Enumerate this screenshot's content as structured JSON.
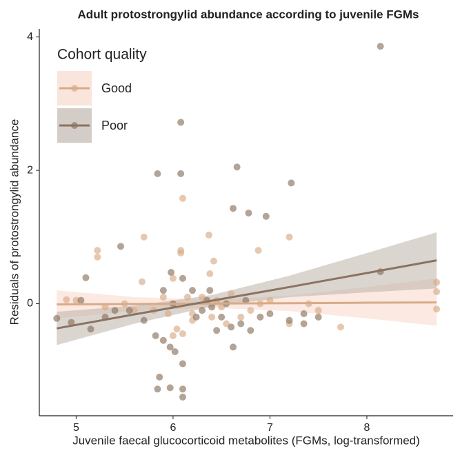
{
  "chart_data": {
    "type": "scatter",
    "title": "Adult protostrongylid abundance according to juvenile FGMs",
    "x_label": "Juvenile faecal glucocorticoid metabolites (FGMs, log-transformed)",
    "y_label": "Residuals of protostrongylid abundance",
    "legend_title": "Cohort quality",
    "legend": "top-left",
    "xlim": [
      4.62,
      8.89
    ],
    "ylim": [
      -1.68,
      4.12
    ],
    "xticks": [
      5,
      6,
      7,
      8
    ],
    "yticks": [
      0,
      2,
      4
    ],
    "series": [
      {
        "name": "Good",
        "color": "#d8ab86",
        "band_color": "#f7d3c6",
        "x": [
          6.1,
          6.37,
          5.7,
          7.2,
          6.88,
          5.22,
          5.22,
          6.08,
          6.08,
          6.42,
          6.0,
          6.38,
          5.68,
          8.72,
          8.72,
          8.72,
          7.73,
          6.04,
          6.1,
          6.0,
          6.4,
          5.0,
          4.9,
          5.3,
          5.5,
          5.8,
          5.9,
          6.2,
          6.3,
          6.5,
          6.6,
          6.8,
          7.0,
          7.2,
          7.5,
          6.7,
          6.2,
          5.6,
          6.9,
          7.4,
          6.45,
          6.55,
          6.15,
          5.95
        ],
        "y": [
          1.58,
          1.03,
          1.0,
          1.0,
          0.8,
          0.8,
          0.7,
          0.8,
          0.76,
          0.64,
          0.38,
          0.45,
          0.33,
          0.32,
          0.18,
          -0.08,
          -0.35,
          -0.38,
          -0.45,
          -0.48,
          -0.2,
          0.05,
          0.06,
          -0.05,
          0.0,
          -0.1,
          0.1,
          -0.15,
          0.1,
          -0.05,
          0.15,
          -0.1,
          0.05,
          -0.3,
          -0.1,
          -0.2,
          -0.25,
          -0.1,
          0.0,
          0.0,
          0.05,
          -0.3,
          0.1,
          -0.15
        ],
        "fit": {
          "x": [
            4.8,
            5.6,
            6.4,
            7.2,
            8.0,
            8.72
          ],
          "y": [
            -0.01,
            -0.004,
            0.002,
            0.008,
            0.015,
            0.02
          ],
          "lower": [
            -0.22,
            -0.11,
            -0.06,
            -0.11,
            -0.22,
            -0.33
          ],
          "upper": [
            0.2,
            0.1,
            0.06,
            0.12,
            0.25,
            0.38
          ]
        }
      },
      {
        "name": "Poor",
        "color": "#8a7360",
        "band_color": "#b8aca2",
        "x": [
          8.14,
          6.08,
          6.66,
          5.84,
          6.08,
          7.22,
          6.62,
          6.78,
          6.96,
          5.46,
          8.14,
          5.98,
          6.1,
          5.1,
          6.38,
          5.9,
          5.05,
          4.8,
          4.95,
          5.15,
          5.3,
          5.55,
          5.7,
          5.82,
          5.9,
          5.97,
          6.02,
          5.86,
          5.84,
          5.97,
          6.1,
          6.1,
          6.1,
          6.24,
          6.3,
          6.5,
          6.6,
          6.62,
          6.7,
          6.8,
          6.9,
          7.0,
          7.2,
          7.35,
          7.5,
          7.35,
          6.45,
          6.35,
          6.55,
          6.75,
          6.0,
          5.4,
          6.2,
          6.4
        ],
        "y": [
          3.86,
          2.72,
          2.05,
          1.95,
          1.95,
          1.81,
          1.43,
          1.36,
          1.31,
          0.86,
          0.48,
          0.47,
          0.38,
          0.39,
          0.2,
          0.2,
          0.05,
          -0.22,
          -0.28,
          -0.38,
          -0.2,
          -0.1,
          -0.25,
          -0.48,
          -0.55,
          -0.65,
          -0.72,
          -1.1,
          -1.28,
          -1.26,
          -1.28,
          -1.4,
          -0.9,
          -0.2,
          -0.1,
          -0.2,
          -0.35,
          -0.65,
          -0.3,
          -0.4,
          -0.2,
          -0.15,
          -0.25,
          -0.3,
          -0.2,
          -0.15,
          -0.4,
          0.05,
          0.0,
          0.05,
          0.0,
          -0.1,
          0.2,
          -0.05
        ],
        "fit": {
          "x": [
            4.8,
            5.6,
            6.4,
            7.2,
            8.0,
            8.72
          ],
          "y": [
            -0.37,
            -0.16,
            0.045,
            0.25,
            0.46,
            0.65
          ],
          "lower": [
            -0.62,
            -0.3,
            -0.04,
            0.1,
            0.17,
            0.23
          ],
          "upper": [
            -0.12,
            -0.03,
            0.13,
            0.42,
            0.76,
            1.07
          ]
        }
      }
    ]
  }
}
